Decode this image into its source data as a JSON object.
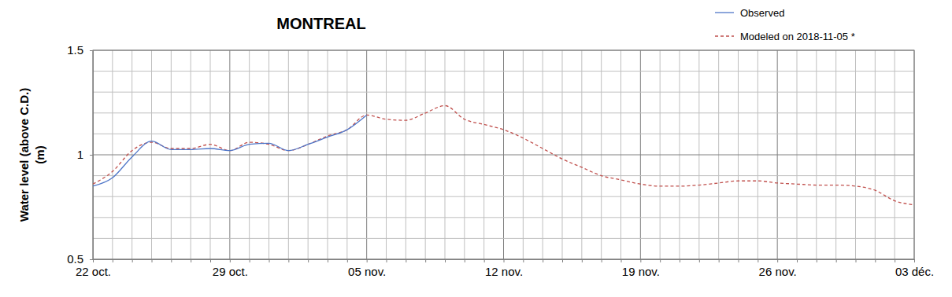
{
  "chart_data": {
    "type": "line",
    "title": "MONTREAL",
    "y_label": [
      "Water level (above C.D.)",
      "(m)"
    ],
    "categories": [
      "22 oct.",
      null,
      null,
      null,
      null,
      null,
      null,
      "29 oct.",
      null,
      null,
      null,
      null,
      null,
      null,
      "05 nov.",
      null,
      null,
      null,
      null,
      null,
      null,
      "12 nov.",
      null,
      null,
      null,
      null,
      null,
      null,
      "19 nov.",
      null,
      null,
      null,
      null,
      null,
      null,
      "26 nov.",
      null,
      null,
      null,
      null,
      null,
      null,
      "03 déc."
    ],
    "series": [
      {
        "name": "Observed",
        "color": "#4f76c8",
        "line_style": "solid",
        "values": [
          0.85,
          0.89,
          0.99,
          1.065,
          1.025,
          1.025,
          1.03,
          1.02,
          1.05,
          1.055,
          1.02,
          1.05,
          1.085,
          1.12,
          1.19,
          null,
          null,
          null,
          null,
          null,
          null,
          null,
          null,
          null,
          null,
          null,
          null,
          null,
          null,
          null,
          null,
          null,
          null,
          null,
          null,
          null,
          null,
          null,
          null,
          null,
          null,
          null,
          null
        ]
      },
      {
        "name": "Modeled on 2018-11-05 *",
        "color": "#c0504d",
        "line_style": "dashed",
        "values": [
          0.86,
          0.92,
          1.02,
          1.06,
          1.03,
          1.03,
          1.05,
          1.02,
          1.06,
          1.05,
          1.02,
          1.05,
          1.09,
          1.12,
          1.19,
          1.17,
          1.165,
          1.2,
          1.235,
          1.17,
          1.145,
          1.12,
          1.08,
          1.03,
          0.98,
          0.94,
          0.9,
          0.88,
          0.86,
          0.85,
          0.85,
          0.855,
          0.865,
          0.875,
          0.875,
          0.865,
          0.86,
          0.855,
          0.855,
          0.85,
          0.83,
          0.78,
          0.76
        ]
      }
    ],
    "ylim": [
      0.5,
      1.5
    ],
    "yticks": [
      0.5,
      1,
      1.5
    ],
    "grid": true,
    "legend": "top-right"
  }
}
